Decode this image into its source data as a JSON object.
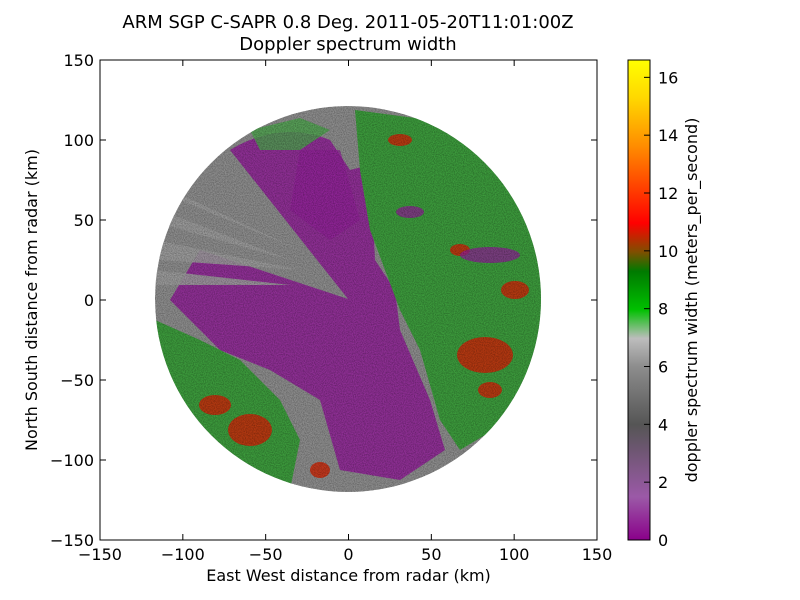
{
  "chart_data": {
    "type": "heatmap",
    "title_line1": "ARM SGP C-SAPR 0.8 Deg. 2011-05-20T11:01:00Z",
    "title_line2": "Doppler spectrum width",
    "xlabel": "East West distance from radar (km)",
    "ylabel": "North South distance from radar (km)",
    "xlim": [
      -150,
      150
    ],
    "ylim": [
      -150,
      150
    ],
    "xticks": [
      -150,
      -100,
      -50,
      0,
      50,
      100,
      150
    ],
    "yticks": [
      -150,
      -100,
      -50,
      0,
      50,
      100,
      150
    ],
    "xtick_labels": [
      "−150",
      "−100",
      "−50",
      "0",
      "50",
      "100",
      "150"
    ],
    "ytick_labels": [
      "−150",
      "−100",
      "−50",
      "0",
      "50",
      "100",
      "150"
    ],
    "max_range_km": 117,
    "colorbar": {
      "label": "doppler spectrum width (meters_per_second)",
      "range": [
        0,
        16.6
      ],
      "ticks": [
        0,
        2,
        4,
        6,
        8,
        10,
        12,
        14,
        16
      ],
      "colors": [
        "#8a008a",
        "#9b59a7",
        "#555555",
        "#8c8c8c",
        "#bdbdbd",
        "#00c000",
        "#007a00",
        "#7f4f00",
        "#ff0000",
        "#ff8c00",
        "#ffd700",
        "#ffff00"
      ]
    },
    "regions": [
      {
        "description": "purple low spectrum width",
        "value_range": [
          0,
          2
        ]
      },
      {
        "description": "grey moderate spectrum width",
        "value_range": [
          4,
          6
        ]
      },
      {
        "description": "green high spectrum width (east and south-west)",
        "value_range": [
          7,
          9
        ]
      },
      {
        "description": "red patches",
        "value_range": [
          10,
          12
        ]
      }
    ]
  }
}
